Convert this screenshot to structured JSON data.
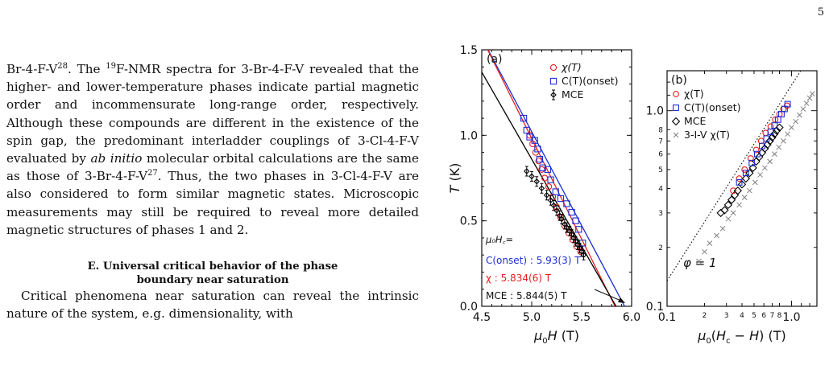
{
  "page": {
    "number": "5"
  },
  "body_text": {
    "paragraph1": [
      {
        "t": "Br-4-F-V"
      },
      {
        "t": "28",
        "sup": true
      },
      {
        "t": ". The "
      },
      {
        "t": "19",
        "sup": true
      },
      {
        "t": "F-NMR spectra for 3-Br-4-F-V revealed that the higher- and lower-temperature phases indicate partial magnetic order and incommensurate long-range order, respectively. Although these compounds are different in the existence of the spin gap, the predominant interladder couplings of 3-Cl-4-F-V evaluated by "
      },
      {
        "t": "ab initio",
        "em": true
      },
      {
        "t": " molecular orbital calculations are the same as those of 3-Br-4-F-V"
      },
      {
        "t": "27",
        "sup": true
      },
      {
        "t": ". Thus, the two phases in 3-Cl-4-F-V are also considered to form similar magnetic states. Microscopic measurements may still be required to reveal more detailed magnetic structures of phases 1 and 2."
      }
    ],
    "section_heading": [
      "E.   Universal critical behavior of the phase",
      "boundary near saturation"
    ],
    "paragraph2": "Critical phenomena near saturation can reveal the intrinsic nature of the system, e.g. dimensionality, with"
  },
  "chart_data": [
    {
      "type": "scatter",
      "panel_label": "(a)",
      "xlabel": "μ0H (T)",
      "ylabel": "T (K)",
      "xlim": [
        4.5,
        6.0
      ],
      "ylim": [
        0.0,
        1.5
      ],
      "xticks": [
        "4.5",
        "5.0",
        "5.5",
        "6.0"
      ],
      "yticks": [
        "0.0",
        "0.5",
        "1.0",
        "1.5"
      ],
      "legend_position": "top-right",
      "legend": [
        "χ(T)",
        "C(T)(onset)",
        "MCE"
      ],
      "colors": {
        "chi": "#e8201f",
        "c_onset": "#1c2fd6",
        "mce": "#000000"
      },
      "series": [
        {
          "name": "χ(T)",
          "marker": "circle",
          "color": "#e8201f",
          "x": [
            4.98,
            5.01,
            5.04,
            5.07,
            5.1,
            5.13,
            5.17,
            5.21,
            5.25,
            5.29,
            5.33,
            5.37,
            5.41,
            5.45,
            5.49
          ],
          "y": [
            1.0,
            0.95,
            0.9,
            0.85,
            0.8,
            0.75,
            0.7,
            0.64,
            0.58,
            0.52,
            0.47,
            0.43,
            0.39,
            0.35,
            0.32
          ]
        },
        {
          "name": "C(T)(onset)",
          "marker": "square",
          "color": "#1c2fd6",
          "x": [
            4.92,
            4.95,
            4.98,
            5.03,
            5.06,
            5.08,
            5.11,
            5.16,
            5.19,
            5.24,
            5.29,
            5.35,
            5.4,
            5.44,
            5.47,
            5.51
          ],
          "y": [
            1.1,
            1.03,
            0.99,
            0.97,
            0.92,
            0.86,
            0.81,
            0.8,
            0.74,
            0.67,
            0.63,
            0.6,
            0.55,
            0.5,
            0.45,
            0.37
          ]
        },
        {
          "name": "MCE",
          "marker": "diamond-errorbar",
          "color": "#000000",
          "x": [
            4.95,
            5.0,
            5.05,
            5.1,
            5.15,
            5.19,
            5.22,
            5.25,
            5.28,
            5.3,
            5.33,
            5.35,
            5.38,
            5.4,
            5.42,
            5.44,
            5.46,
            5.48,
            5.5,
            5.52
          ],
          "y": [
            0.79,
            0.76,
            0.73,
            0.69,
            0.65,
            0.62,
            0.59,
            0.56,
            0.53,
            0.51,
            0.48,
            0.46,
            0.44,
            0.42,
            0.4,
            0.38,
            0.36,
            0.34,
            0.32,
            0.3
          ]
        }
      ],
      "fit_lines": [
        {
          "name": "C(onset)",
          "color": "#1c2fd6",
          "x": [
            4.5,
            5.93
          ],
          "y": [
            1.57,
            0.0
          ]
        },
        {
          "name": "χ",
          "color": "#e8201f",
          "x": [
            4.5,
            5.834
          ],
          "y": [
            1.57,
            0.0
          ]
        },
        {
          "name": "MCE",
          "color": "#000000",
          "x": [
            4.5,
            5.844
          ],
          "y": [
            1.37,
            0.0
          ]
        }
      ],
      "annotations": {
        "header": "μ₀H꜀=",
        "c_onset": "C(onset) : 5.93(3) T",
        "chi": "χ : 5.834(6) T",
        "mce": "MCE : 5.844(5) T"
      }
    },
    {
      "type": "scatter",
      "panel_label": "(b)",
      "scale": "log-log",
      "xlabel": "μ0(Hc − H) (T)",
      "xlim": [
        0.1,
        1.6
      ],
      "ylim": [
        0.1,
        1.6
      ],
      "xticks_major": [
        "0.1",
        "1.0"
      ],
      "xticks_minor": [
        "2",
        "3",
        "4",
        "5",
        "6",
        "7",
        "8"
      ],
      "yticks_major": [
        "0.1",
        "1.0"
      ],
      "yticks_minor": [
        "2",
        "3",
        "4",
        "5",
        "6",
        "7",
        "8"
      ],
      "legend_position": "top-left",
      "legend": [
        "χ(T)",
        "C(T)(onset)",
        "MCE",
        "3-I-V χ(T)"
      ],
      "guide_line": {
        "label": "φ = 1",
        "style": "dotted",
        "slope": 1
      },
      "series": [
        {
          "name": "χ(T)",
          "marker": "circle",
          "color": "#e8201f",
          "x": [
            0.34,
            0.38,
            0.42,
            0.47,
            0.52,
            0.57,
            0.62,
            0.68,
            0.74,
            0.8,
            0.86,
            0.92
          ],
          "y": [
            0.39,
            0.45,
            0.5,
            0.57,
            0.63,
            0.7,
            0.77,
            0.83,
            0.9,
            0.96,
            1.02,
            1.06
          ]
        },
        {
          "name": "C(T)(onset)",
          "marker": "square",
          "color": "#1c2fd6",
          "x": [
            0.38,
            0.43,
            0.48,
            0.53,
            0.58,
            0.63,
            0.68,
            0.73,
            0.78,
            0.83,
            0.88,
            0.93
          ],
          "y": [
            0.43,
            0.48,
            0.54,
            0.6,
            0.66,
            0.72,
            0.78,
            0.84,
            0.9,
            0.96,
            1.02,
            1.08
          ]
        },
        {
          "name": "MCE",
          "marker": "diamond",
          "color": "#000000",
          "x": [
            0.27,
            0.29,
            0.31,
            0.33,
            0.35,
            0.37,
            0.4,
            0.43,
            0.46,
            0.49,
            0.52,
            0.55,
            0.58,
            0.61,
            0.64,
            0.67,
            0.7,
            0.73,
            0.76,
            0.8
          ],
          "y": [
            0.3,
            0.31,
            0.33,
            0.35,
            0.37,
            0.39,
            0.42,
            0.45,
            0.48,
            0.51,
            0.55,
            0.58,
            0.61,
            0.64,
            0.67,
            0.7,
            0.73,
            0.76,
            0.79,
            0.82
          ]
        },
        {
          "name": "3-I-V χ(T)",
          "marker": "cross",
          "color": "#808080",
          "x": [
            0.18,
            0.2,
            0.22,
            0.25,
            0.28,
            0.31,
            0.34,
            0.38,
            0.42,
            0.46,
            0.51,
            0.56,
            0.61,
            0.67,
            0.73,
            0.79,
            0.86,
            0.93,
            1.0,
            1.08,
            1.16,
            1.24,
            1.32,
            1.4,
            1.47
          ],
          "y": [
            0.17,
            0.19,
            0.21,
            0.23,
            0.25,
            0.28,
            0.3,
            0.33,
            0.36,
            0.39,
            0.43,
            0.47,
            0.51,
            0.55,
            0.6,
            0.65,
            0.7,
            0.76,
            0.82,
            0.88,
            0.95,
            1.02,
            1.09,
            1.16,
            1.22
          ]
        }
      ]
    }
  ]
}
